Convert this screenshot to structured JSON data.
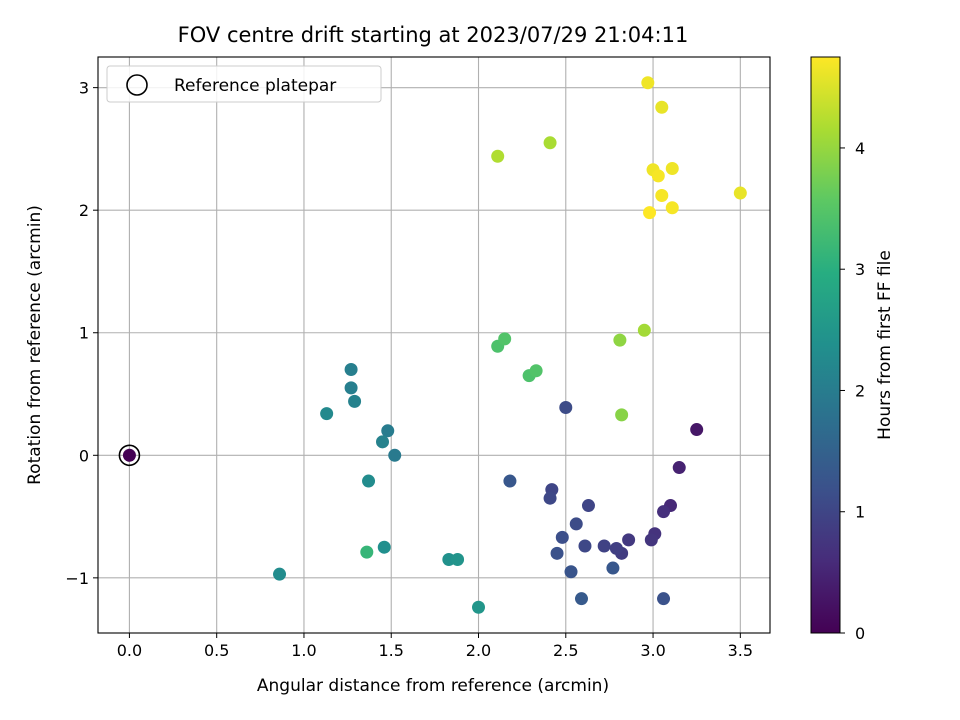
{
  "chart_data": {
    "type": "scatter",
    "title": "FOV centre drift starting at 2023/07/29 21:04:11",
    "xlabel": "Angular distance from reference (arcmin)",
    "ylabel": "Rotation from reference (arcmin)",
    "xlim": [
      -0.18,
      3.67
    ],
    "ylim": [
      -1.45,
      3.25
    ],
    "xticks": [
      0.0,
      0.5,
      1.0,
      1.5,
      2.0,
      2.5,
      3.0,
      3.5
    ],
    "xtick_labels": [
      "0.0",
      "0.5",
      "1.0",
      "1.5",
      "2.0",
      "2.5",
      "3.0",
      "3.5"
    ],
    "yticks": [
      -1,
      0,
      1,
      2,
      3
    ],
    "ytick_labels": [
      "−1",
      "0",
      "1",
      "2",
      "3"
    ],
    "grid": true,
    "legend": {
      "placement": "top-left",
      "entries": [
        "Reference platepar"
      ]
    },
    "reference_point": {
      "x": 0.0,
      "y": 0.0
    },
    "colorbar": {
      "label": "Hours from first FF file",
      "range": [
        0,
        4.75
      ],
      "ticks": [
        0,
        1,
        2,
        3,
        4
      ],
      "tick_labels": [
        "0",
        "1",
        "2",
        "3",
        "4"
      ],
      "colormap": "viridis"
    },
    "points": [
      {
        "x": 0.0,
        "y": 0.0,
        "c": 0.0
      },
      {
        "x": 3.25,
        "y": 0.21,
        "c": 0.3
      },
      {
        "x": 3.15,
        "y": -0.1,
        "c": 0.45
      },
      {
        "x": 3.1,
        "y": -0.41,
        "c": 0.55
      },
      {
        "x": 3.06,
        "y": -0.46,
        "c": 0.65
      },
      {
        "x": 3.01,
        "y": -0.64,
        "c": 0.7
      },
      {
        "x": 2.99,
        "y": -0.69,
        "c": 0.75
      },
      {
        "x": 2.86,
        "y": -0.69,
        "c": 0.8
      },
      {
        "x": 2.82,
        "y": -0.8,
        "c": 0.85
      },
      {
        "x": 2.79,
        "y": -0.76,
        "c": 0.9
      },
      {
        "x": 2.72,
        "y": -0.74,
        "c": 0.95
      },
      {
        "x": 2.63,
        "y": -0.41,
        "c": 1.0
      },
      {
        "x": 2.61,
        "y": -0.74,
        "c": 1.05
      },
      {
        "x": 2.56,
        "y": -0.56,
        "c": 1.1
      },
      {
        "x": 2.48,
        "y": -0.67,
        "c": 1.15
      },
      {
        "x": 2.45,
        "y": -0.8,
        "c": 1.2
      },
      {
        "x": 2.42,
        "y": -0.28,
        "c": 1.0
      },
      {
        "x": 2.41,
        "y": -0.35,
        "c": 1.05
      },
      {
        "x": 2.5,
        "y": 0.39,
        "c": 1.1
      },
      {
        "x": 2.53,
        "y": -0.95,
        "c": 1.25
      },
      {
        "x": 2.77,
        "y": -0.92,
        "c": 1.3
      },
      {
        "x": 2.18,
        "y": -0.21,
        "c": 1.3
      },
      {
        "x": 2.59,
        "y": -1.17,
        "c": 1.35
      },
      {
        "x": 3.06,
        "y": -1.17,
        "c": 1.2
      },
      {
        "x": 1.48,
        "y": 0.2,
        "c": 2.0
      },
      {
        "x": 1.52,
        "y": 0.0,
        "c": 1.95
      },
      {
        "x": 1.45,
        "y": 0.11,
        "c": 2.1
      },
      {
        "x": 1.27,
        "y": 0.7,
        "c": 2.05
      },
      {
        "x": 1.27,
        "y": 0.55,
        "c": 2.05
      },
      {
        "x": 1.29,
        "y": 0.44,
        "c": 2.1
      },
      {
        "x": 1.13,
        "y": 0.34,
        "c": 2.25
      },
      {
        "x": 1.37,
        "y": -0.21,
        "c": 2.3
      },
      {
        "x": 0.86,
        "y": -0.97,
        "c": 2.3
      },
      {
        "x": 1.46,
        "y": -0.75,
        "c": 2.35
      },
      {
        "x": 1.83,
        "y": -0.85,
        "c": 2.4
      },
      {
        "x": 1.88,
        "y": -0.85,
        "c": 2.45
      },
      {
        "x": 2.0,
        "y": -1.24,
        "c": 2.5
      },
      {
        "x": 1.36,
        "y": -0.79,
        "c": 3.15
      },
      {
        "x": 2.11,
        "y": 0.89,
        "c": 3.4
      },
      {
        "x": 2.15,
        "y": 0.95,
        "c": 3.45
      },
      {
        "x": 2.29,
        "y": 0.65,
        "c": 3.4
      },
      {
        "x": 2.33,
        "y": 0.69,
        "c": 3.45
      },
      {
        "x": 2.81,
        "y": 0.94,
        "c": 3.95
      },
      {
        "x": 2.82,
        "y": 0.33,
        "c": 3.9
      },
      {
        "x": 2.95,
        "y": 1.02,
        "c": 4.1
      },
      {
        "x": 2.11,
        "y": 2.44,
        "c": 4.2
      },
      {
        "x": 2.41,
        "y": 2.55,
        "c": 4.15
      },
      {
        "x": 2.97,
        "y": 3.04,
        "c": 4.65
      },
      {
        "x": 3.05,
        "y": 2.84,
        "c": 4.6
      },
      {
        "x": 3.0,
        "y": 2.33,
        "c": 4.65
      },
      {
        "x": 3.03,
        "y": 2.28,
        "c": 4.7
      },
      {
        "x": 3.11,
        "y": 2.34,
        "c": 4.65
      },
      {
        "x": 3.05,
        "y": 2.12,
        "c": 4.7
      },
      {
        "x": 3.11,
        "y": 2.02,
        "c": 4.7
      },
      {
        "x": 2.98,
        "y": 1.98,
        "c": 4.75
      },
      {
        "x": 3.5,
        "y": 2.14,
        "c": 4.6
      }
    ]
  }
}
